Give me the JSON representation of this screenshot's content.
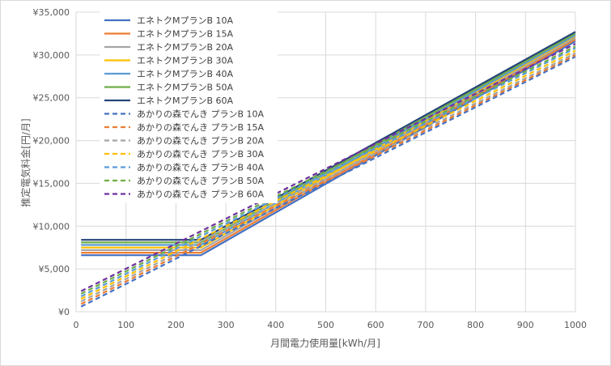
{
  "chart_data": {
    "type": "line",
    "title": "",
    "xlabel": "月間電力使用量[kWh/月]",
    "ylabel": "推定電気料金[円/月]",
    "xlim": [
      0,
      1000
    ],
    "ylim": [
      0,
      35000
    ],
    "x_ticks": [
      "0",
      "100",
      "200",
      "300",
      "400",
      "500",
      "600",
      "700",
      "800",
      "900",
      "1000"
    ],
    "y_ticks": [
      "¥0",
      "¥5,000",
      "¥10,000",
      "¥15,000",
      "¥20,000",
      "¥25,000",
      "¥30,000",
      "¥35,000"
    ],
    "grid": true,
    "legend_position": "top-left",
    "series": [
      {
        "name": "エネトクMプランB 10A",
        "color": "#4472c4",
        "dash": "solid",
        "x": [
          10,
          250,
          1000
        ],
        "y": [
          6600,
          6600,
          31600
        ]
      },
      {
        "name": "エネトクMプランB 15A",
        "color": "#ed7d31",
        "dash": "solid",
        "x": [
          10,
          250,
          1000
        ],
        "y": [
          6900,
          6900,
          31800
        ]
      },
      {
        "name": "エネトクMプランB 20A",
        "color": "#a5a5a5",
        "dash": "solid",
        "x": [
          10,
          250,
          1000
        ],
        "y": [
          7200,
          7200,
          32000
        ]
      },
      {
        "name": "エネトクMプランB 30A",
        "color": "#ffc000",
        "dash": "solid",
        "x": [
          10,
          250,
          1000
        ],
        "y": [
          7500,
          7500,
          32200
        ]
      },
      {
        "name": "エネトクMプランB 40A",
        "color": "#5b9bd5",
        "dash": "solid",
        "x": [
          10,
          250,
          1000
        ],
        "y": [
          7800,
          7800,
          32300
        ]
      },
      {
        "name": "エネトクMプランB 50A",
        "color": "#70ad47",
        "dash": "solid",
        "x": [
          10,
          250,
          1000
        ],
        "y": [
          8100,
          8100,
          32500
        ]
      },
      {
        "name": "エネトクMプランB 60A",
        "color": "#264478",
        "dash": "solid",
        "x": [
          10,
          250,
          1000
        ],
        "y": [
          8400,
          8400,
          32700
        ]
      },
      {
        "name": "あかりの森でんき プランB 10A",
        "color": "#4472c4",
        "dash": "dash",
        "x": [
          10,
          1000
        ],
        "y": [
          600,
          29800
        ]
      },
      {
        "name": "あかりの森でんき プランB 15A",
        "color": "#ed7d31",
        "dash": "dash",
        "x": [
          10,
          1000
        ],
        "y": [
          900,
          30000
        ]
      },
      {
        "name": "あかりの森でんき プランB 20A",
        "color": "#a5a5a5",
        "dash": "dash",
        "x": [
          10,
          1000
        ],
        "y": [
          1200,
          30200
        ]
      },
      {
        "name": "あかりの森でんき プランB 30A",
        "color": "#ffc000",
        "dash": "dash",
        "x": [
          10,
          1000
        ],
        "y": [
          1500,
          30500
        ]
      },
      {
        "name": "あかりの森でんき プランB 40A",
        "color": "#5b9bd5",
        "dash": "dash",
        "x": [
          10,
          1000
        ],
        "y": [
          1800,
          30800
        ]
      },
      {
        "name": "あかりの森でんき プランB 50A",
        "color": "#70ad47",
        "dash": "dash",
        "x": [
          10,
          1000
        ],
        "y": [
          2100,
          31000
        ]
      },
      {
        "name": "あかりの森でんき プランB 60A",
        "color": "#7030a0",
        "dash": "dash",
        "x": [
          10,
          1000
        ],
        "y": [
          2400,
          31300
        ]
      }
    ]
  }
}
